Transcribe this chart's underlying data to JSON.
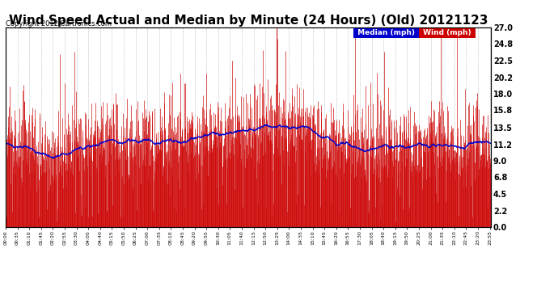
{
  "title": "Wind Speed Actual and Median by Minute (24 Hours) (Old) 20121123",
  "copyright": "Copyright 2012 Cartronics.com",
  "ylabel_right_ticks": [
    0.0,
    2.2,
    4.5,
    6.8,
    9.0,
    11.2,
    13.5,
    15.8,
    18.0,
    20.2,
    22.5,
    24.8,
    27.0
  ],
  "ylim": [
    0.0,
    27.0
  ],
  "background_color": "#ffffff",
  "plot_bg_color": "#ffffff",
  "grid_color": "#aaaaaa",
  "title_fontsize": 11,
  "wind_color": "#cc0000",
  "median_color": "#0000cc",
  "legend_median_bg": "#0000cc",
  "legend_wind_bg": "#cc0000",
  "n_minutes": 1440,
  "seed": 42
}
